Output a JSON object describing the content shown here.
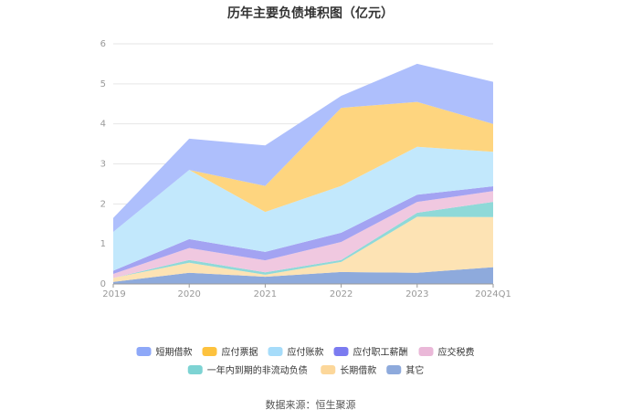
{
  "title": "历年主要负债堆积图（亿元）",
  "source": "数据来源：恒生聚源",
  "chart_data": {
    "type": "area",
    "stacked": true,
    "title": "历年主要负债堆积图（亿元）",
    "x": [
      "2019",
      "2020",
      "2021",
      "2022",
      "2023",
      "2024Q1"
    ],
    "ylim": [
      0,
      6
    ],
    "yticks": [
      "0",
      "1",
      "2",
      "3",
      "4",
      "5",
      "6"
    ],
    "grid": true,
    "legend_position": "bottom",
    "series": [
      {
        "name": "其它",
        "color": "#8eaadc",
        "values": [
          0.05,
          0.28,
          0.18,
          0.3,
          0.28,
          0.42
        ]
      },
      {
        "name": "长期借款",
        "color": "#fde3b4",
        "values": [
          0.1,
          0.25,
          0.05,
          0.25,
          1.4,
          1.25
        ]
      },
      {
        "name": "一年内到期的非流动负债",
        "color": "#8fd9d8",
        "values": [
          0.0,
          0.07,
          0.06,
          0.05,
          0.1,
          0.38
        ]
      },
      {
        "name": "应交税费",
        "color": "#f0c8e0",
        "values": [
          0.1,
          0.3,
          0.3,
          0.45,
          0.27,
          0.27
        ]
      },
      {
        "name": "应付职工薪酬",
        "color": "#a3a3f2",
        "values": [
          0.08,
          0.22,
          0.21,
          0.23,
          0.18,
          0.12
        ]
      },
      {
        "name": "应付账款",
        "color": "#c2e8fc",
        "values": [
          0.97,
          1.73,
          1.0,
          1.17,
          1.2,
          0.86
        ]
      },
      {
        "name": "应付票据",
        "color": "#fed57f",
        "values": [
          0.0,
          0.0,
          0.65,
          1.95,
          1.12,
          0.7
        ]
      },
      {
        "name": "短期借款",
        "color": "#aebffc",
        "values": [
          0.35,
          0.78,
          1.01,
          0.3,
          0.95,
          1.05
        ]
      }
    ]
  },
  "legend": {
    "items": [
      {
        "label": "短期借款",
        "color": "#8ea8f8"
      },
      {
        "label": "应付票据",
        "color": "#fdc23e"
      },
      {
        "label": "应付账款",
        "color": "#a6dcfa"
      },
      {
        "label": "应付职工薪酬",
        "color": "#7b7bf0"
      },
      {
        "label": "应交税费",
        "color": "#eab8d8"
      },
      {
        "label": "一年内到期的非流动负债",
        "color": "#7dd3d3"
      },
      {
        "label": "长期借款",
        "color": "#fcd79a"
      },
      {
        "label": "其它",
        "color": "#8eaadc"
      }
    ]
  }
}
